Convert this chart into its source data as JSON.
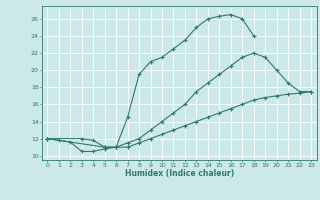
{
  "xlabel": "Humidex (Indice chaleur)",
  "ylabel": "",
  "bg_color": "#cce8e8",
  "grid_color": "#ffffff",
  "line_color": "#2d7a6e",
  "xlim": [
    -0.5,
    23.5
  ],
  "ylim": [
    9.5,
    27.5
  ],
  "xticks": [
    0,
    1,
    2,
    3,
    4,
    5,
    6,
    7,
    8,
    9,
    10,
    11,
    12,
    13,
    14,
    15,
    16,
    17,
    18,
    19,
    20,
    21,
    22,
    23
  ],
  "yticks": [
    10,
    12,
    14,
    16,
    18,
    20,
    22,
    24,
    26
  ],
  "curve1_x": [
    0,
    1,
    2,
    3,
    4,
    5,
    6,
    7,
    8,
    9,
    10,
    11,
    12,
    13,
    14,
    15,
    16,
    17,
    18
  ],
  "curve1_y": [
    12,
    11.8,
    11.6,
    10.5,
    10.5,
    10.8,
    11.0,
    14.5,
    19.5,
    21.0,
    21.5,
    22.5,
    23.5,
    25.0,
    26.0,
    26.3,
    26.5,
    26.0,
    24.0
  ],
  "curve2_x": [
    0,
    3,
    4,
    5,
    6,
    7,
    8,
    9,
    10,
    11,
    12,
    13,
    14,
    15,
    16,
    17,
    18,
    19,
    20,
    21,
    22,
    23
  ],
  "curve2_y": [
    12,
    12.0,
    11.8,
    11.0,
    11.0,
    11.5,
    12.0,
    13.0,
    14.0,
    15.0,
    16.0,
    17.5,
    18.5,
    19.5,
    20.5,
    21.5,
    22.0,
    21.5,
    20.0,
    18.5,
    17.5,
    17.5
  ],
  "curve3_x": [
    0,
    5,
    6,
    7,
    8,
    9,
    10,
    11,
    12,
    13,
    14,
    15,
    16,
    17,
    18,
    19,
    20,
    21,
    22,
    23
  ],
  "curve3_y": [
    12,
    11.0,
    11.0,
    11.0,
    11.5,
    12.0,
    12.5,
    13.0,
    13.5,
    14.0,
    14.5,
    15.0,
    15.5,
    16.0,
    16.5,
    16.8,
    17.0,
    17.2,
    17.3,
    17.5
  ]
}
